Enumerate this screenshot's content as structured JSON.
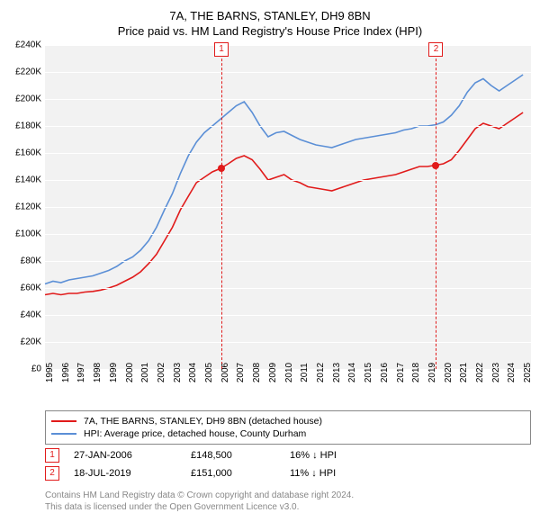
{
  "title": "7A, THE BARNS, STANLEY, DH9 8BN",
  "subtitle": "Price paid vs. HM Land Registry's House Price Index (HPI)",
  "chart": {
    "type": "line",
    "background_color": "#f2f2f2",
    "grid_color": "#ffffff",
    "y": {
      "min": 0,
      "max": 240000,
      "tick_step": 20000,
      "labels": [
        "£0",
        "£20K",
        "£40K",
        "£60K",
        "£80K",
        "£100K",
        "£120K",
        "£140K",
        "£160K",
        "£180K",
        "£200K",
        "£220K",
        "£240K"
      ]
    },
    "x": {
      "min": 1995,
      "max": 2025.5,
      "labels": [
        "1995",
        "1996",
        "1997",
        "1998",
        "1999",
        "2000",
        "2001",
        "2002",
        "2003",
        "2004",
        "2005",
        "2006",
        "2007",
        "2008",
        "2009",
        "2010",
        "2011",
        "2012",
        "2013",
        "2014",
        "2015",
        "2016",
        "2017",
        "2018",
        "2019",
        "2020",
        "2021",
        "2022",
        "2023",
        "2024",
        "2025"
      ]
    },
    "series": [
      {
        "name": "7A, THE BARNS, STANLEY, DH9 8BN (detached house)",
        "color": "#e11b1b",
        "line_width": 1.6,
        "points": [
          [
            1995,
            55000
          ],
          [
            1995.5,
            56000
          ],
          [
            1996,
            55000
          ],
          [
            1996.5,
            56000
          ],
          [
            1997,
            56000
          ],
          [
            1997.5,
            57000
          ],
          [
            1998,
            57500
          ],
          [
            1998.5,
            58500
          ],
          [
            1999,
            60000
          ],
          [
            1999.5,
            62000
          ],
          [
            2000,
            65000
          ],
          [
            2000.5,
            68000
          ],
          [
            2001,
            72000
          ],
          [
            2001.5,
            78000
          ],
          [
            2002,
            85000
          ],
          [
            2002.5,
            95000
          ],
          [
            2003,
            105000
          ],
          [
            2003.5,
            118000
          ],
          [
            2004,
            128000
          ],
          [
            2004.5,
            138000
          ],
          [
            2005,
            142000
          ],
          [
            2005.5,
            146000
          ],
          [
            2006,
            148500
          ],
          [
            2006.5,
            152000
          ],
          [
            2007,
            156000
          ],
          [
            2007.5,
            158000
          ],
          [
            2008,
            155000
          ],
          [
            2008.5,
            148000
          ],
          [
            2009,
            140000
          ],
          [
            2009.5,
            142000
          ],
          [
            2010,
            144000
          ],
          [
            2010.5,
            140000
          ],
          [
            2011,
            138000
          ],
          [
            2011.5,
            135000
          ],
          [
            2012,
            134000
          ],
          [
            2012.5,
            133000
          ],
          [
            2013,
            132000
          ],
          [
            2013.5,
            134000
          ],
          [
            2014,
            136000
          ],
          [
            2014.5,
            138000
          ],
          [
            2015,
            140000
          ],
          [
            2015.5,
            141000
          ],
          [
            2016,
            142000
          ],
          [
            2016.5,
            143000
          ],
          [
            2017,
            144000
          ],
          [
            2017.5,
            146000
          ],
          [
            2018,
            148000
          ],
          [
            2018.5,
            150000
          ],
          [
            2019,
            150000
          ],
          [
            2019.54,
            151000
          ],
          [
            2020,
            152000
          ],
          [
            2020.5,
            155000
          ],
          [
            2021,
            162000
          ],
          [
            2021.5,
            170000
          ],
          [
            2022,
            178000
          ],
          [
            2022.5,
            182000
          ],
          [
            2023,
            180000
          ],
          [
            2023.5,
            178000
          ],
          [
            2024,
            182000
          ],
          [
            2024.5,
            186000
          ],
          [
            2025,
            190000
          ]
        ]
      },
      {
        "name": "HPI: Average price, detached house, County Durham",
        "color": "#5b8fd6",
        "line_width": 1.6,
        "points": [
          [
            1995,
            63000
          ],
          [
            1995.5,
            65000
          ],
          [
            1996,
            64000
          ],
          [
            1996.5,
            66000
          ],
          [
            1997,
            67000
          ],
          [
            1997.5,
            68000
          ],
          [
            1998,
            69000
          ],
          [
            1998.5,
            71000
          ],
          [
            1999,
            73000
          ],
          [
            1999.5,
            76000
          ],
          [
            2000,
            80000
          ],
          [
            2000.5,
            83000
          ],
          [
            2001,
            88000
          ],
          [
            2001.5,
            95000
          ],
          [
            2002,
            105000
          ],
          [
            2002.5,
            118000
          ],
          [
            2003,
            130000
          ],
          [
            2003.5,
            145000
          ],
          [
            2004,
            158000
          ],
          [
            2004.5,
            168000
          ],
          [
            2005,
            175000
          ],
          [
            2005.5,
            180000
          ],
          [
            2006,
            185000
          ],
          [
            2006.5,
            190000
          ],
          [
            2007,
            195000
          ],
          [
            2007.5,
            198000
          ],
          [
            2008,
            190000
          ],
          [
            2008.5,
            180000
          ],
          [
            2009,
            172000
          ],
          [
            2009.5,
            175000
          ],
          [
            2010,
            176000
          ],
          [
            2010.5,
            173000
          ],
          [
            2011,
            170000
          ],
          [
            2011.5,
            168000
          ],
          [
            2012,
            166000
          ],
          [
            2012.5,
            165000
          ],
          [
            2013,
            164000
          ],
          [
            2013.5,
            166000
          ],
          [
            2014,
            168000
          ],
          [
            2014.5,
            170000
          ],
          [
            2015,
            171000
          ],
          [
            2015.5,
            172000
          ],
          [
            2016,
            173000
          ],
          [
            2016.5,
            174000
          ],
          [
            2017,
            175000
          ],
          [
            2017.5,
            177000
          ],
          [
            2018,
            178000
          ],
          [
            2018.5,
            180000
          ],
          [
            2019,
            180000
          ],
          [
            2019.54,
            181000
          ],
          [
            2020,
            183000
          ],
          [
            2020.5,
            188000
          ],
          [
            2021,
            195000
          ],
          [
            2021.5,
            205000
          ],
          [
            2022,
            212000
          ],
          [
            2022.5,
            215000
          ],
          [
            2023,
            210000
          ],
          [
            2023.5,
            206000
          ],
          [
            2024,
            210000
          ],
          [
            2024.5,
            214000
          ],
          [
            2025,
            218000
          ]
        ]
      }
    ],
    "markers": [
      {
        "num": "1",
        "x": 2006.07,
        "y": 148500,
        "color": "#e11b1b"
      },
      {
        "num": "2",
        "x": 2019.54,
        "y": 151000,
        "color": "#e11b1b"
      }
    ]
  },
  "legend": {
    "border_color": "#888888",
    "items": [
      {
        "color": "#e11b1b",
        "label": "7A, THE BARNS, STANLEY, DH9 8BN (detached house)"
      },
      {
        "color": "#5b8fd6",
        "label": "HPI: Average price, detached house, County Durham"
      }
    ]
  },
  "sales": [
    {
      "num": "1",
      "color": "#e11b1b",
      "date": "27-JAN-2006",
      "price": "£148,500",
      "delta": "16% ↓ HPI"
    },
    {
      "num": "2",
      "color": "#e11b1b",
      "date": "18-JUL-2019",
      "price": "£151,000",
      "delta": "11% ↓ HPI"
    }
  ],
  "footnote": {
    "line1": "Contains HM Land Registry data © Crown copyright and database right 2024.",
    "line2": "This data is licensed under the Open Government Licence v3.0."
  }
}
